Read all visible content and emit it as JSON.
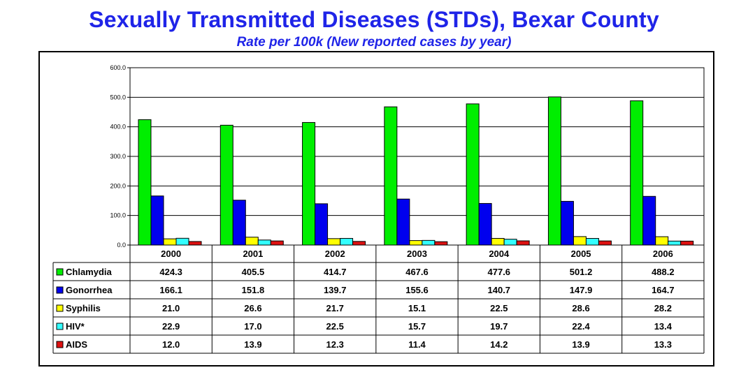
{
  "header": {
    "title": "Sexually Transmitted Diseases (STDs),  Bexar County",
    "subtitle": "Rate per 100k (New reported cases by year)"
  },
  "chart_data": {
    "type": "bar",
    "categories": [
      "2000",
      "2001",
      "2002",
      "2003",
      "2004",
      "2005",
      "2006"
    ],
    "ylim": [
      0,
      600
    ],
    "yticks": [
      "0.0",
      "100.0",
      "200.0",
      "300.0",
      "400.0",
      "500.0",
      "600.0"
    ],
    "ytick_values": [
      0,
      100,
      200,
      300,
      400,
      500,
      600
    ],
    "grid": true,
    "legend": "data-table",
    "series": [
      {
        "name": "Chlamydia",
        "color": "#00ee00",
        "values": [
          424.3,
          405.5,
          414.7,
          467.6,
          477.6,
          501.2,
          488.2
        ],
        "labels": [
          "424.3",
          "405.5",
          "414.7",
          "467.6",
          "477.6",
          "501.2",
          "488.2"
        ]
      },
      {
        "name": "Gonorrhea",
        "color": "#0000ee",
        "values": [
          166.1,
          151.8,
          139.7,
          155.6,
          140.7,
          147.9,
          164.7
        ],
        "labels": [
          "166.1",
          "151.8",
          "139.7",
          "155.6",
          "140.7",
          "147.9",
          "164.7"
        ]
      },
      {
        "name": "Syphilis",
        "color": "#ffff00",
        "values": [
          21.0,
          26.6,
          21.7,
          15.1,
          22.5,
          28.6,
          28.2
        ],
        "labels": [
          "21.0",
          "26.6",
          "21.7",
          "15.1",
          "22.5",
          "28.6",
          "28.2"
        ]
      },
      {
        "name": "HIV*",
        "color": "#33ffff",
        "values": [
          22.9,
          17.0,
          22.5,
          15.7,
          19.7,
          22.4,
          13.4
        ],
        "labels": [
          "22.9",
          "17.0",
          "22.5",
          "15.7",
          "19.7",
          "22.4",
          "13.4"
        ]
      },
      {
        "name": "AIDS",
        "color": "#dd1111",
        "values": [
          12.0,
          13.9,
          12.3,
          11.4,
          14.2,
          13.9,
          13.3
        ],
        "labels": [
          "12.0",
          "13.9",
          "12.3",
          "11.4",
          "14.2",
          "13.9",
          "13.3"
        ]
      }
    ]
  }
}
